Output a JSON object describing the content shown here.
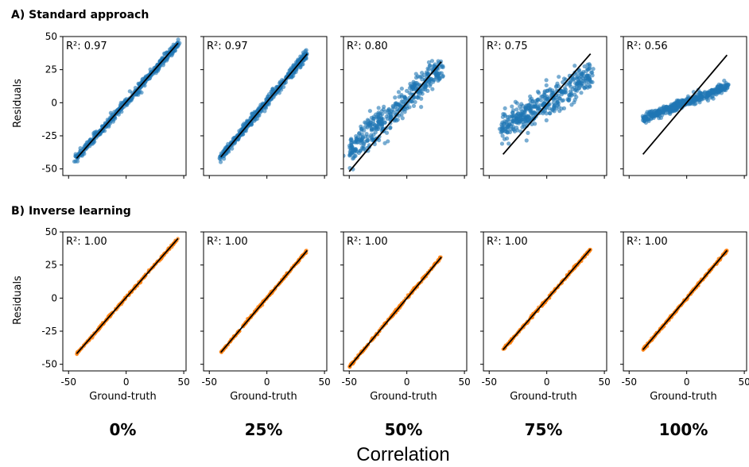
{
  "sections": [
    {
      "title": "A) Standard approach",
      "ylabel": "Residuals",
      "series_color": "#1f77b4"
    },
    {
      "title": "B) Inverse learning",
      "ylabel": "Residuals",
      "series_color": "#ff7f0e"
    }
  ],
  "xlabel": "Ground-truth",
  "correlation_labels": [
    "0%",
    "25%",
    "50%",
    "75%",
    "100%"
  ],
  "footer": "Correlation",
  "chart_data": [
    {
      "type": "scatter",
      "row": "A) Standard approach",
      "column": "0%",
      "r2_text": "R²: 0.97",
      "xlabel": "",
      "ylabel": "Residuals",
      "xticks": [
        -50,
        0,
        50
      ],
      "yticks": [
        -50,
        -25,
        0,
        25,
        50
      ],
      "xlim": [
        -55,
        52
      ],
      "ylim": [
        -55,
        50
      ],
      "grid": false,
      "marker_color": "#1f77b4",
      "fit_line": {
        "x": [
          -43,
          45
        ],
        "y": [
          -42,
          45
        ]
      },
      "point_x_range": [
        -44,
        46
      ],
      "spread": 1.6,
      "slope": 0.98,
      "intercept": 0.5
    },
    {
      "type": "scatter",
      "row": "A) Standard approach",
      "column": "25%",
      "r2_text": "R²: 0.97",
      "xlabel": "",
      "ylabel": "",
      "xticks": [
        -50,
        0,
        50
      ],
      "yticks": [
        -50,
        -25,
        0,
        25,
        50
      ],
      "xlim": [
        -55,
        52
      ],
      "ylim": [
        -55,
        50
      ],
      "grid": false,
      "marker_color": "#1f77b4",
      "fit_line": {
        "x": [
          -40,
          35
        ],
        "y": [
          -41,
          37
        ]
      },
      "point_x_range": [
        -41,
        35
      ],
      "spread": 1.8,
      "slope": 1.04,
      "intercept": 0.6
    },
    {
      "type": "scatter",
      "row": "A) Standard approach",
      "column": "50%",
      "r2_text": "R²: 0.80",
      "xlabel": "",
      "ylabel": "",
      "xticks": [
        -50,
        0,
        50
      ],
      "yticks": [
        -50,
        -25,
        0,
        25,
        50
      ],
      "xlim": [
        -55,
        52
      ],
      "ylim": [
        -55,
        50
      ],
      "grid": false,
      "marker_color": "#1f77b4",
      "fit_line": {
        "x": [
          -50,
          30
        ],
        "y": [
          -52,
          31
        ]
      },
      "point_x_range": [
        -50,
        30
      ],
      "spread": 5.5,
      "slope": 0.78,
      "intercept": 2.5
    },
    {
      "type": "scatter",
      "row": "A) Standard approach",
      "column": "75%",
      "r2_text": "R²: 0.75",
      "xlabel": "",
      "ylabel": "",
      "xticks": [
        -50,
        0,
        50
      ],
      "yticks": [
        -50,
        -25,
        0,
        25,
        50
      ],
      "xlim": [
        -55,
        52
      ],
      "ylim": [
        -55,
        50
      ],
      "grid": false,
      "marker_color": "#1f77b4",
      "fit_line": {
        "x": [
          -38,
          38
        ],
        "y": [
          -39,
          37
        ]
      },
      "point_x_range": [
        -40,
        40
      ],
      "spread": 5.5,
      "slope": 0.52,
      "intercept": 1.0
    },
    {
      "type": "scatter",
      "row": "A) Standard approach",
      "column": "100%",
      "r2_text": "R²: 0.56",
      "xlabel": "",
      "ylabel": "",
      "xticks": [
        -50,
        0,
        50
      ],
      "yticks": [
        -50,
        -25,
        0,
        25,
        50
      ],
      "xlim": [
        -55,
        52
      ],
      "ylim": [
        -55,
        50
      ],
      "grid": false,
      "marker_color": "#1f77b4",
      "fit_line": {
        "x": [
          -38,
          35
        ],
        "y": [
          -39,
          36
        ]
      },
      "point_x_range": [
        -38,
        36
      ],
      "spread": 1.6,
      "slope": 0.33,
      "intercept": 0.5
    },
    {
      "type": "scatter",
      "row": "B) Inverse learning",
      "column": "0%",
      "r2_text": "R²: 1.00",
      "xlabel": "Ground-truth",
      "ylabel": "Residuals",
      "xticks": [
        -50,
        0,
        50
      ],
      "yticks": [
        -50,
        -25,
        0,
        25,
        50
      ],
      "xlim": [
        -55,
        52
      ],
      "ylim": [
        -55,
        50
      ],
      "grid": false,
      "marker_color": "#ff7f0e",
      "fit_line": {
        "x": [
          -43,
          45
        ],
        "y": [
          -42,
          45
        ]
      },
      "point_x_range": [
        -43,
        45
      ],
      "spread": 0.5,
      "slope": 0.989,
      "intercept": 0.5
    },
    {
      "type": "scatter",
      "row": "B) Inverse learning",
      "column": "25%",
      "r2_text": "R²: 1.00",
      "xlabel": "Ground-truth",
      "ylabel": "",
      "xticks": [
        -50,
        0,
        50
      ],
      "yticks": [
        -50,
        -25,
        0,
        25,
        50
      ],
      "xlim": [
        -55,
        52
      ],
      "ylim": [
        -55,
        50
      ],
      "grid": false,
      "marker_color": "#ff7f0e",
      "fit_line": {
        "x": [
          -40,
          35
        ],
        "y": [
          -41,
          36
        ]
      },
      "point_x_range": [
        -40,
        35
      ],
      "spread": 0.5,
      "slope": 1.027,
      "intercept": 0.1
    },
    {
      "type": "scatter",
      "row": "B) Inverse learning",
      "column": "50%",
      "r2_text": "R²: 1.00",
      "xlabel": "Ground-truth",
      "ylabel": "",
      "xticks": [
        -50,
        0,
        50
      ],
      "yticks": [
        -50,
        -25,
        0,
        25,
        50
      ],
      "xlim": [
        -55,
        52
      ],
      "ylim": [
        -55,
        50
      ],
      "grid": false,
      "marker_color": "#ff7f0e",
      "fit_line": {
        "x": [
          -50,
          30
        ],
        "y": [
          -52,
          31
        ]
      },
      "point_x_range": [
        -50,
        30
      ],
      "spread": 0.5,
      "slope": 1.04,
      "intercept": 0.0
    },
    {
      "type": "scatter",
      "row": "B) Inverse learning",
      "column": "75%",
      "r2_text": "R²: 1.00",
      "xlabel": "Ground-truth",
      "ylabel": "",
      "xticks": [
        -50,
        0,
        50
      ],
      "yticks": [
        -50,
        -25,
        0,
        25,
        50
      ],
      "xlim": [
        -55,
        52
      ],
      "ylim": [
        -55,
        50
      ],
      "grid": false,
      "marker_color": "#ff7f0e",
      "fit_line": {
        "x": [
          -38,
          38
        ],
        "y": [
          -39,
          37
        ]
      },
      "point_x_range": [
        -38,
        38
      ],
      "spread": 0.5,
      "slope": 1.0,
      "intercept": -1.0
    },
    {
      "type": "scatter",
      "row": "B) Inverse learning",
      "column": "100%",
      "r2_text": "R²: 1.00",
      "xlabel": "Ground-truth",
      "ylabel": "",
      "xticks": [
        -50,
        0,
        50
      ],
      "yticks": [
        -50,
        -25,
        0,
        25,
        50
      ],
      "xlim": [
        -55,
        52
      ],
      "ylim": [
        -55,
        50
      ],
      "grid": false,
      "marker_color": "#ff7f0e",
      "fit_line": {
        "x": [
          -38,
          35
        ],
        "y": [
          -39,
          36
        ]
      },
      "point_x_range": [
        -38,
        35
      ],
      "spread": 0.5,
      "slope": 1.027,
      "intercept": 0.0
    }
  ]
}
